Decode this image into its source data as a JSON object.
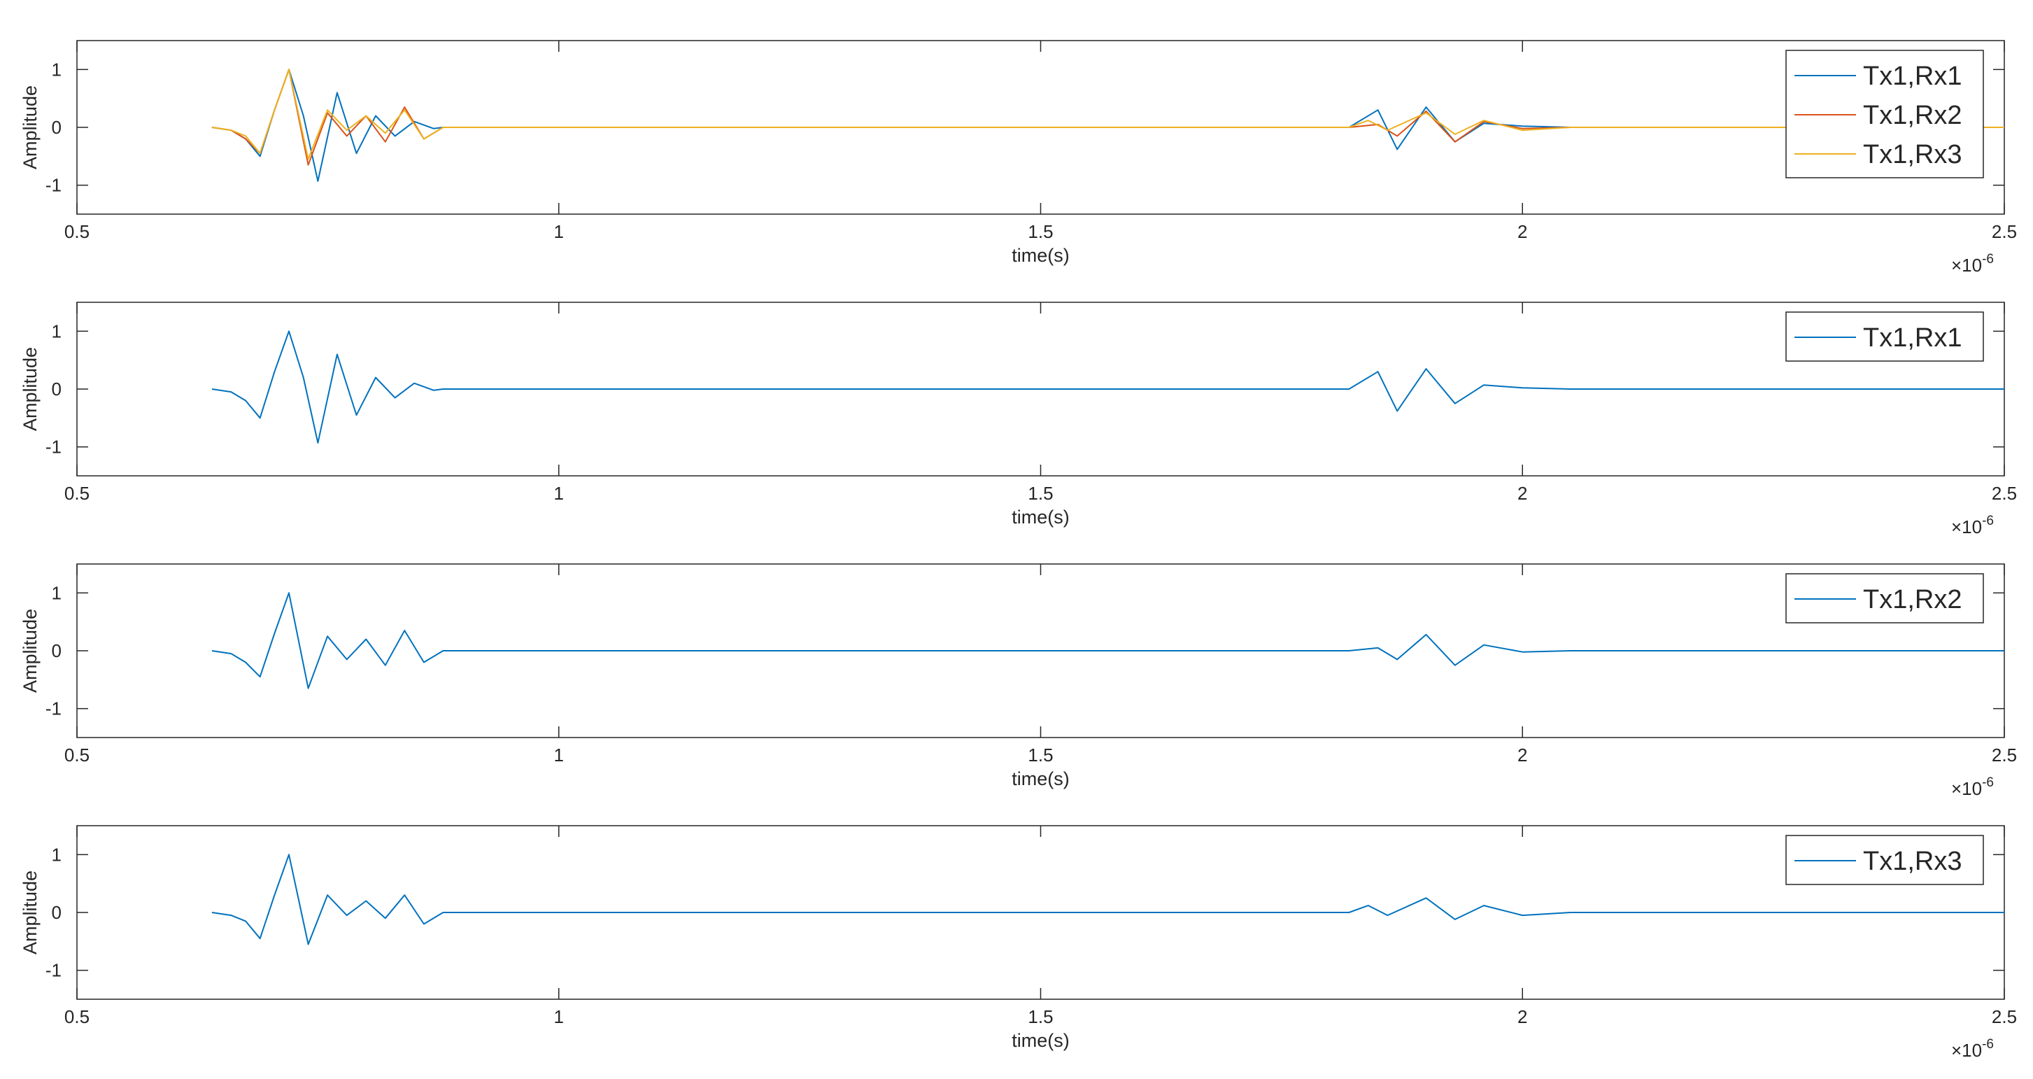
{
  "colors": {
    "blue": "#0072BD",
    "orange": "#D95319",
    "yellow": "#EDB120",
    "axis": "#262626",
    "grid": "#d0d0d0"
  },
  "chart_data": [
    {
      "type": "line",
      "xlabel": "time(s)",
      "ylabel": "Amplitude",
      "xlim": [
        5e-07,
        2.5e-06
      ],
      "ylim": [
        -1.5,
        1.5
      ],
      "x_ticks": [
        "0.5",
        "1",
        "1.5",
        "2",
        "2.5"
      ],
      "y_ticks": [
        "-1",
        "0",
        "1"
      ],
      "x_exponent": "-6",
      "legend_position": "top-right",
      "series": [
        {
          "name": "Tx1,Rx1",
          "color": "#0072BD",
          "x": [
            0.64,
            0.66,
            0.675,
            0.69,
            0.705,
            0.72,
            0.735,
            0.75,
            0.77,
            0.79,
            0.81,
            0.83,
            0.85,
            0.87,
            0.88,
            1.82,
            1.85,
            1.87,
            1.9,
            1.93,
            1.96,
            2.0,
            2.05,
            2.5
          ],
          "y": [
            0,
            -0.05,
            -0.2,
            -0.5,
            0.3,
            1.0,
            0.2,
            -0.93,
            0.6,
            -0.45,
            0.2,
            -0.15,
            0.1,
            -0.02,
            0,
            0,
            0.3,
            -0.38,
            0.35,
            -0.25,
            0.07,
            0.02,
            0,
            0
          ]
        },
        {
          "name": "Tx1,Rx2",
          "color": "#D95319",
          "x": [
            0.64,
            0.66,
            0.675,
            0.69,
            0.705,
            0.72,
            0.74,
            0.76,
            0.78,
            0.8,
            0.82,
            0.84,
            0.86,
            0.88,
            1.82,
            1.85,
            1.87,
            1.9,
            1.93,
            1.96,
            2.0,
            2.05,
            2.5
          ],
          "y": [
            0,
            -0.05,
            -0.2,
            -0.45,
            0.3,
            1.0,
            -0.65,
            0.25,
            -0.15,
            0.2,
            -0.25,
            0.35,
            -0.2,
            0,
            0,
            0.05,
            -0.15,
            0.28,
            -0.25,
            0.1,
            -0.02,
            0,
            0
          ]
        },
        {
          "name": "Tx1,Rx3",
          "color": "#EDB120",
          "x": [
            0.64,
            0.66,
            0.675,
            0.69,
            0.705,
            0.72,
            0.74,
            0.76,
            0.78,
            0.8,
            0.82,
            0.84,
            0.86,
            0.88,
            1.82,
            1.84,
            1.86,
            1.9,
            1.93,
            1.96,
            2.0,
            2.05,
            2.5
          ],
          "y": [
            0,
            -0.05,
            -0.15,
            -0.45,
            0.3,
            1.0,
            -0.55,
            0.3,
            -0.05,
            0.2,
            -0.1,
            0.3,
            -0.2,
            0,
            0,
            0.12,
            -0.05,
            0.25,
            -0.12,
            0.12,
            -0.05,
            0,
            0
          ]
        }
      ]
    },
    {
      "type": "line",
      "xlabel": "time(s)",
      "ylabel": "Amplitude",
      "xlim": [
        5e-07,
        2.5e-06
      ],
      "ylim": [
        -1.5,
        1.5
      ],
      "x_ticks": [
        "0.5",
        "1",
        "1.5",
        "2",
        "2.5"
      ],
      "y_ticks": [
        "-1",
        "0",
        "1"
      ],
      "x_exponent": "-6",
      "legend_position": "top-right",
      "series": [
        {
          "name": "Tx1,Rx1",
          "color": "#0072BD",
          "x": [
            0.64,
            0.66,
            0.675,
            0.69,
            0.705,
            0.72,
            0.735,
            0.75,
            0.77,
            0.79,
            0.81,
            0.83,
            0.85,
            0.87,
            0.88,
            1.82,
            1.85,
            1.87,
            1.9,
            1.93,
            1.96,
            2.0,
            2.05,
            2.5
          ],
          "y": [
            0,
            -0.05,
            -0.2,
            -0.5,
            0.3,
            1.0,
            0.2,
            -0.93,
            0.6,
            -0.45,
            0.2,
            -0.15,
            0.1,
            -0.02,
            0,
            0,
            0.3,
            -0.38,
            0.35,
            -0.25,
            0.07,
            0.02,
            0,
            0
          ]
        }
      ]
    },
    {
      "type": "line",
      "xlabel": "time(s)",
      "ylabel": "Amplitude",
      "xlim": [
        5e-07,
        2.5e-06
      ],
      "ylim": [
        -1.5,
        1.5
      ],
      "x_ticks": [
        "0.5",
        "1",
        "1.5",
        "2",
        "2.5"
      ],
      "y_ticks": [
        "-1",
        "0",
        "1"
      ],
      "x_exponent": "-6",
      "legend_position": "top-right",
      "series": [
        {
          "name": "Tx1,Rx2",
          "color": "#0072BD",
          "x": [
            0.64,
            0.66,
            0.675,
            0.69,
            0.705,
            0.72,
            0.74,
            0.76,
            0.78,
            0.8,
            0.82,
            0.84,
            0.86,
            0.88,
            1.82,
            1.85,
            1.87,
            1.9,
            1.93,
            1.96,
            2.0,
            2.05,
            2.5
          ],
          "y": [
            0,
            -0.05,
            -0.2,
            -0.45,
            0.3,
            1.0,
            -0.65,
            0.25,
            -0.15,
            0.2,
            -0.25,
            0.35,
            -0.2,
            0,
            0,
            0.05,
            -0.15,
            0.28,
            -0.25,
            0.1,
            -0.02,
            0,
            0
          ]
        }
      ]
    },
    {
      "type": "line",
      "xlabel": "time(s)",
      "ylabel": "Amplitude",
      "xlim": [
        5e-07,
        2.5e-06
      ],
      "ylim": [
        -1.5,
        1.5
      ],
      "x_ticks": [
        "0.5",
        "1",
        "1.5",
        "2",
        "2.5"
      ],
      "y_ticks": [
        "-1",
        "0",
        "1"
      ],
      "x_exponent": "-6",
      "legend_position": "top-right",
      "series": [
        {
          "name": "Tx1,Rx3",
          "color": "#0072BD",
          "x": [
            0.64,
            0.66,
            0.675,
            0.69,
            0.705,
            0.72,
            0.74,
            0.76,
            0.78,
            0.8,
            0.82,
            0.84,
            0.86,
            0.88,
            1.82,
            1.84,
            1.86,
            1.9,
            1.93,
            1.96,
            2.0,
            2.05,
            2.5
          ],
          "y": [
            0,
            -0.05,
            -0.15,
            -0.45,
            0.3,
            1.0,
            -0.55,
            0.3,
            -0.05,
            0.2,
            -0.1,
            0.3,
            -0.2,
            0,
            0,
            0.12,
            -0.05,
            0.25,
            -0.12,
            0.12,
            -0.05,
            0,
            0
          ]
        }
      ]
    }
  ]
}
